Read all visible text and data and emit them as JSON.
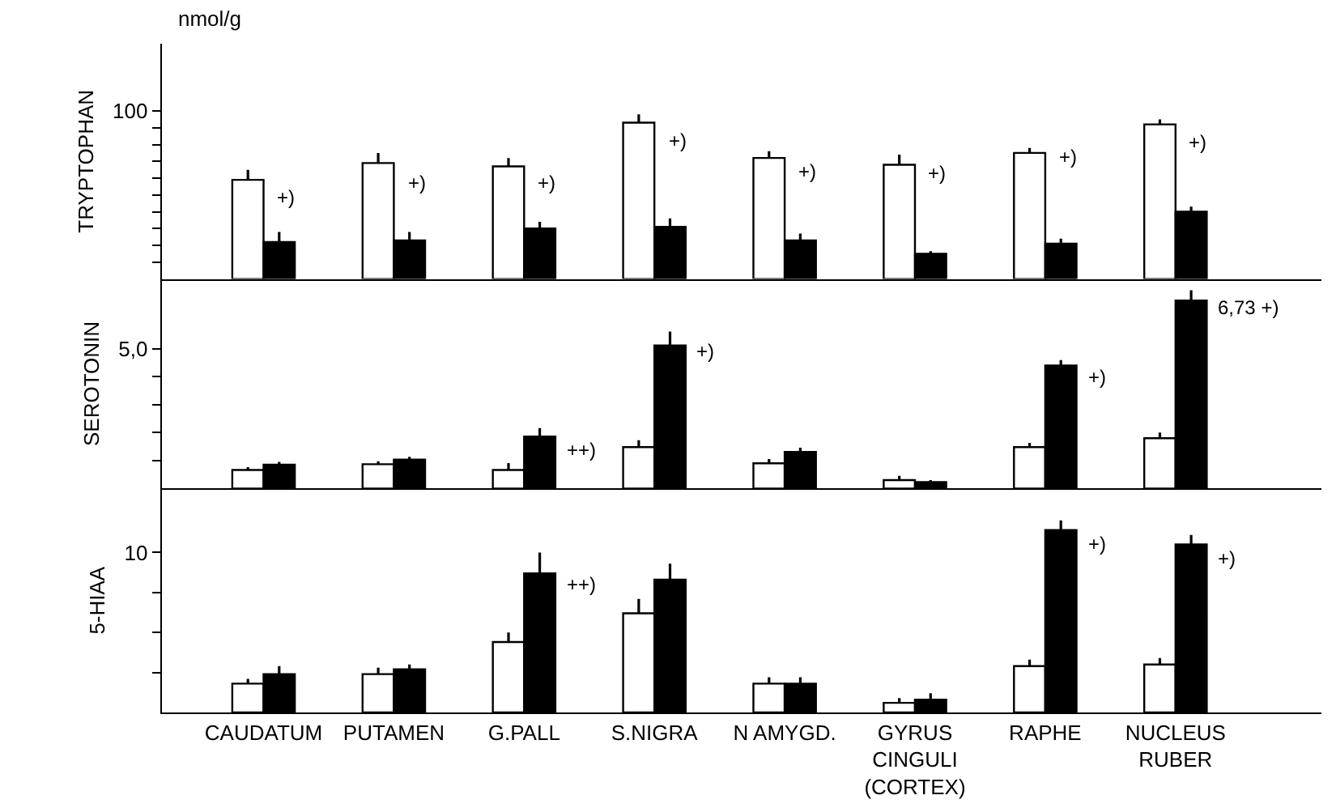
{
  "chart_data": [
    {
      "type": "bar",
      "ylabel": "TRYPTOPHAN",
      "categories": [
        "CAUDATUM",
        "PUTAMEN",
        "G.PALL",
        "S.NIGRA",
        "N AMYGD.",
        "GYRUS\nCINGULI\n(CORTEX)",
        "RAPHE",
        "NUCLEUS\nRUBER"
      ],
      "series": [
        {
          "color": "#ffffff",
          "values": [
            59,
            69,
            67,
            93,
            72,
            68,
            75,
            92
          ],
          "errors": [
            [
              59,
              65
            ],
            [
              69,
              75
            ],
            [
              67,
              72
            ],
            [
              93,
              98
            ],
            [
              72,
              76
            ],
            [
              68,
              74
            ],
            [
              75,
              78
            ],
            [
              92,
              95
            ]
          ]
        },
        {
          "color": "#000000",
          "values": [
            22,
            23,
            30,
            31,
            23,
            15,
            21,
            40
          ],
          "errors": [
            [
              22,
              28
            ],
            [
              23,
              28
            ],
            [
              30,
              34
            ],
            [
              31,
              36
            ],
            [
              23,
              27
            ],
            [
              15,
              16.5
            ],
            [
              21,
              24
            ],
            [
              40,
              43
            ]
          ]
        }
      ],
      "ylim": [
        0,
        140
      ],
      "yticks": [
        {
          "value": 10,
          "label": null
        },
        {
          "value": 20,
          "label": null
        },
        {
          "value": 30,
          "label": null
        },
        {
          "value": 40,
          "label": null
        },
        {
          "value": 50,
          "label": null
        },
        {
          "value": 60,
          "label": null
        },
        {
          "value": 70,
          "label": null
        },
        {
          "value": 80,
          "label": null
        },
        {
          "value": 90,
          "label": null
        },
        100
      ],
      "tick_labels": "y",
      "grid": false,
      "annotations": [
        "nmol/g",
        {
          "text": "+)",
          "x": "CAUDATUM",
          "y": 48
        },
        {
          "text": "+)",
          "x": "PUTAMEN",
          "y": 57
        },
        {
          "text": "+)",
          "x": "G.PALL",
          "y": 57
        },
        {
          "text": "+)",
          "x": "S.NIGRA",
          "y": 82
        },
        {
          "text": "+)",
          "x": "N AMYGD.",
          "y": 64
        },
        {
          "text": "+)",
          "x": "GYRUS\nCINGULI\n(CORTEX)",
          "y": 63
        },
        {
          "text": "+)",
          "x": "RAPHE",
          "y": 73
        },
        {
          "text": "+)",
          "x": "NUCLEUS\nRUBER",
          "y": 81
        }
      ]
    },
    {
      "type": "bar",
      "ylabel": "SEROTONIN",
      "categories": [
        "CAUDATUM",
        "PUTAMEN",
        "G.PALL",
        "S.NIGRA",
        "N AMYGD.",
        "GYRUS\nCINGULI\n(CORTEX)",
        "RAPHE",
        "NUCLEUS\nRUBER"
      ],
      "series": [
        {
          "color": "#ffffff",
          "values": [
            0.66,
            0.87,
            0.66,
            1.48,
            0.9,
            0.3,
            1.48,
            1.8
          ],
          "errors": [
            [
              0.66,
              0.76
            ],
            [
              0.87,
              0.97
            ],
            [
              0.66,
              0.91
            ],
            [
              1.48,
              1.73
            ],
            [
              0.9,
              1.05
            ],
            [
              0.3,
              0.45
            ],
            [
              1.48,
              1.63
            ],
            [
              1.8,
              2.0
            ]
          ]
        },
        {
          "color": "#000000",
          "values": [
            0.85,
            1.03,
            1.86,
            5.12,
            1.31,
            0.23,
            4.4,
            6.73
          ],
          "errors": [
            [
              0.85,
              0.95
            ],
            [
              1.03,
              1.13
            ],
            [
              1.86,
              2.16
            ],
            [
              5.12,
              5.62
            ],
            [
              1.31,
              1.46
            ],
            [
              0.23,
              0.3
            ],
            [
              4.4,
              4.6
            ],
            [
              6.73,
              7.1
            ]
          ]
        }
      ],
      "ylim": [
        0,
        7.5
      ],
      "yticks": [
        {
          "value": 1,
          "label": null
        },
        {
          "value": 2,
          "label": null
        },
        {
          "value": 3,
          "label": null
        },
        {
          "value": 4,
          "label": null
        },
        {
          "value": 5,
          "label": "5,0"
        }
      ],
      "tick_labels": "y",
      "grid": false,
      "annotations": [
        {
          "text": "++)",
          "x": "G.PALL",
          "y": 1.4
        },
        {
          "text": "+)",
          "x": "S.NIGRA",
          "y": 4.9
        },
        {
          "text": "+)",
          "x": "RAPHE",
          "y": 4.0
        },
        {
          "text": "6,73 +)",
          "x": "NUCLEUS\nRUBER",
          "y": 6.5
        }
      ]
    },
    {
      "type": "bar",
      "ylabel": "5-HIAA",
      "categories": [
        "CAUDATUM",
        "PUTAMEN",
        "G.PALL",
        "S.NIGRA",
        "N AMYGD.",
        "GYRUS\nCINGULI\n(CORTEX)",
        "RAPHE",
        "NUCLEUS\nRUBER"
      ],
      "series": [
        {
          "color": "#ffffff",
          "values": [
            1.8,
            2.4,
            4.4,
            6.2,
            1.8,
            0.6,
            2.9,
            3.0
          ],
          "errors": [
            [
              1.8,
              2.1
            ],
            [
              2.4,
              2.8
            ],
            [
              4.4,
              5.0
            ],
            [
              6.2,
              7.1
            ],
            [
              1.8,
              2.2
            ],
            [
              0.6,
              0.9
            ],
            [
              2.9,
              3.3
            ],
            [
              3.0,
              3.4
            ]
          ]
        },
        {
          "color": "#000000",
          "values": [
            2.4,
            2.7,
            8.7,
            8.3,
            1.8,
            0.8,
            11.4,
            10.5
          ],
          "errors": [
            [
              2.4,
              2.9
            ],
            [
              2.7,
              3.0
            ],
            [
              8.7,
              10.0
            ],
            [
              8.3,
              9.3
            ],
            [
              1.8,
              2.2
            ],
            [
              0.8,
              1.2
            ],
            [
              11.4,
              12.0
            ],
            [
              10.5,
              11.1
            ]
          ]
        }
      ],
      "ylim": [
        0,
        14
      ],
      "yticks": [
        {
          "value": 2.5,
          "label": null
        },
        {
          "value": 5,
          "label": null
        },
        {
          "value": 7.5,
          "label": null
        },
        10
      ],
      "grid": false,
      "annotations": [
        {
          "text": "++)",
          "x": "G.PALL",
          "y": 8.0
        },
        {
          "text": "+)",
          "x": "RAPHE",
          "y": 10.5
        },
        {
          "text": "+)",
          "x": "NUCLEUS\nRUBER",
          "y": 9.6
        }
      ]
    }
  ]
}
